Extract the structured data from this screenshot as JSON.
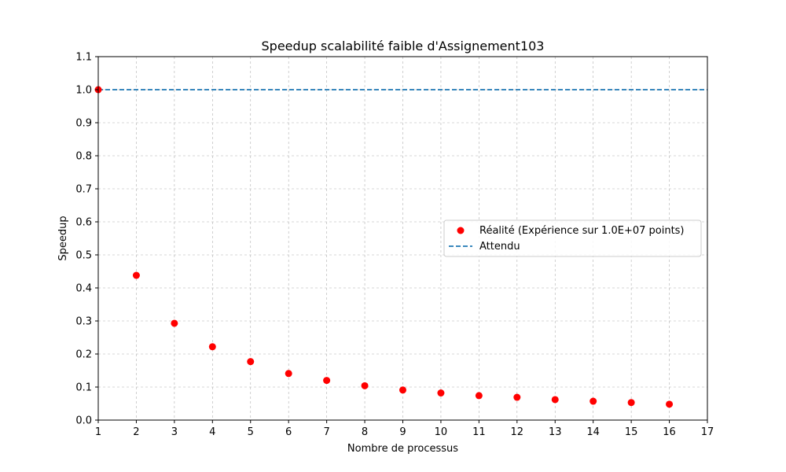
{
  "chart_data": {
    "type": "scatter",
    "title": "Speedup scalabilité faible d'Assignement103",
    "xlabel": "Nombre de processus",
    "ylabel": "Speedup",
    "xlim": [
      1,
      17
    ],
    "ylim": [
      0,
      1.1
    ],
    "x_ticks": [
      "1",
      "2",
      "3",
      "4",
      "5",
      "6",
      "7",
      "8",
      "9",
      "10",
      "11",
      "12",
      "13",
      "14",
      "15",
      "16",
      "17"
    ],
    "y_ticks": [
      "0.0",
      "0.1",
      "0.2",
      "0.3",
      "0.4",
      "0.5",
      "0.6",
      "0.7",
      "0.8",
      "0.9",
      "1.0",
      "1.1"
    ],
    "grid": true,
    "legend_position": "center-right",
    "series": [
      {
        "name": "Réalité (Expérience sur 1.0E+07 points)",
        "kind": "scatter",
        "color": "#ff0000",
        "x": [
          1,
          2,
          3,
          4,
          5,
          6,
          7,
          8,
          9,
          10,
          11,
          12,
          13,
          14,
          15,
          16
        ],
        "y": [
          1.0,
          0.438,
          0.293,
          0.222,
          0.177,
          0.141,
          0.12,
          0.104,
          0.091,
          0.082,
          0.074,
          0.069,
          0.062,
          0.057,
          0.053,
          0.048
        ]
      },
      {
        "name": "Attendu",
        "kind": "dashed-line",
        "color": "#1f77b4",
        "x": [
          1,
          17
        ],
        "y": [
          1.0,
          1.0
        ]
      }
    ]
  }
}
